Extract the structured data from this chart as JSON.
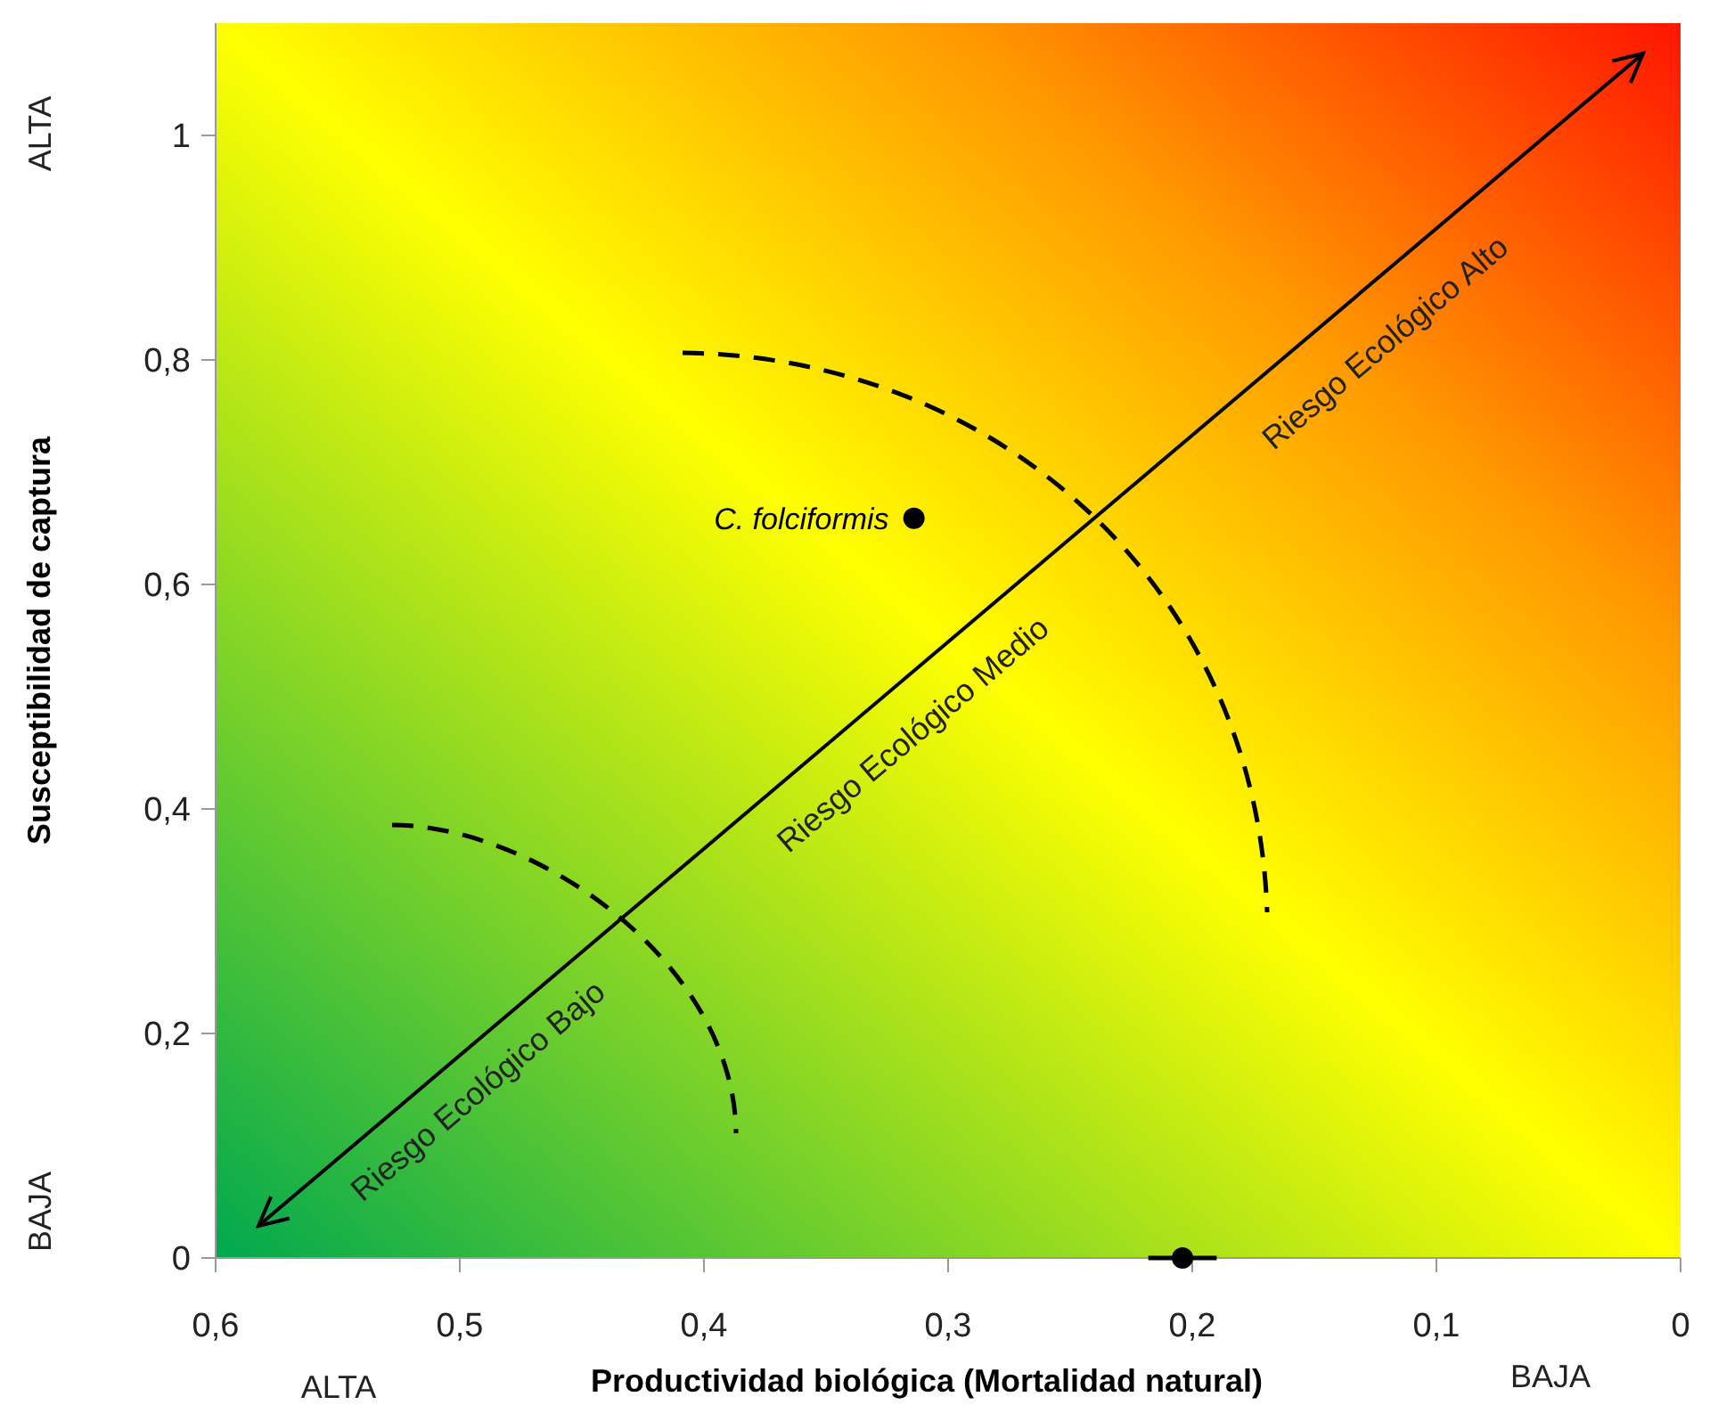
{
  "chart_data": {
    "type": "scatter",
    "xlabel": "Productividad biológica (Mortalidad natural)",
    "ylabel": "Susceptibilidad de captura",
    "x": [
      0.314,
      0.204
    ],
    "series": [
      {
        "color": "#000000",
        "values": [
          0.659,
          0
        ],
        "xerrors": [
          null,
          0.014
        ]
      }
    ],
    "xlim": [
      0.6,
      0
    ],
    "xticks": [
      {
        "value": 0.6,
        "label": "0,6"
      },
      {
        "value": 0.5,
        "label": "0,5"
      },
      {
        "value": 0.4,
        "label": "0,4"
      },
      {
        "value": 0.3,
        "label": "0,3"
      },
      {
        "value": 0.2,
        "label": "0,2"
      },
      {
        "value": 0.1,
        "label": "0,1"
      },
      0
    ],
    "ylim": [
      0,
      1.1
    ],
    "yticks": [
      0,
      {
        "value": 0.2,
        "label": "0,2"
      },
      {
        "value": 0.4,
        "label": "0,4"
      },
      {
        "value": 0.6,
        "label": "0,6"
      },
      {
        "value": 0.8,
        "label": "0,8"
      },
      1
    ],
    "marker": "circle",
    "grid": false,
    "annotations": [
      {
        "text": "C. folciformis",
        "x": 0.314,
        "y": 0.659
      },
      "Riesgo Ecológico Bajo",
      "Riesgo Ecológico Medio",
      "Riesgo Ecológico Alto",
      "ALTA",
      "BAJA",
      "ALTA",
      "BAJA"
    ]
  }
}
